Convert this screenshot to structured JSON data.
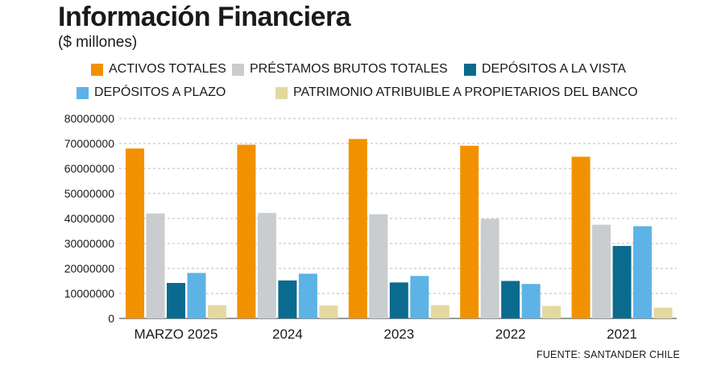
{
  "header": {
    "title": "Información Financiera",
    "subtitle": "($ millones)"
  },
  "source": "FUENTE: SANTANDER CHILE",
  "colors": {
    "activos": "#f29100",
    "prestamos": "#c9cdcf",
    "vista": "#0a6b8f",
    "plazo": "#5db3e6",
    "patrimonio": "#e3d9a0",
    "grid": "#bbbbbb"
  },
  "chart_data": {
    "type": "bar",
    "title": "Información Financiera",
    "subtitle": "($ millones)",
    "categories": [
      "MARZO 2025",
      "2024",
      "2023",
      "2022",
      "2021"
    ],
    "series": [
      {
        "name": "ACTIVOS TOTALES",
        "values": [
          68000000,
          69500000,
          71800000,
          69100000,
          64700000
        ]
      },
      {
        "name": "PRÉSTAMOS BRUTOS TOTALES",
        "values": [
          42000000,
          42200000,
          41700000,
          39800000,
          37500000
        ]
      },
      {
        "name": "DEPÓSITOS A LA VISTA",
        "values": [
          14200000,
          15200000,
          14400000,
          15000000,
          29000000
        ]
      },
      {
        "name": "DEPÓSITOS A PLAZO",
        "values": [
          18200000,
          17900000,
          17000000,
          13800000,
          36900000
        ]
      },
      {
        "name": "PATRIMONIO ATRIBUIBLE A PROPIETARIOS DEL BANCO",
        "values": [
          5300000,
          5200000,
          5300000,
          5000000,
          4300000
        ]
      }
    ],
    "y_ticks": [
      "0",
      "10000000",
      "20000000",
      "30000000",
      "40000000",
      "50000000",
      "60000000",
      "70000000",
      "80000000"
    ],
    "ylim": [
      0,
      80000000
    ],
    "grid": true,
    "legend_position": "top"
  }
}
